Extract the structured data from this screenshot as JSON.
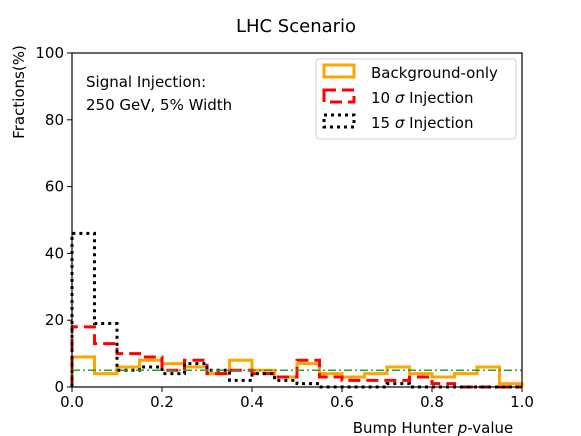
{
  "chart_data": {
    "type": "histogram",
    "title": "LHC Scenario",
    "xlabel_prefix": "Bump Hunter ",
    "xlabel_var": "p",
    "xlabel_suffix": "-value",
    "ylabel": "Fractions(%)",
    "xlim": [
      0.0,
      1.0
    ],
    "ylim": [
      0,
      100
    ],
    "xticks": [
      "0.0",
      "0.2",
      "0.4",
      "0.6",
      "0.8",
      "1.0"
    ],
    "yticks": [
      "0",
      "20",
      "40",
      "60",
      "80",
      "100"
    ],
    "legend_position": "top-right",
    "annotation": [
      "Signal Injection:",
      "250 GeV, 5% Width"
    ],
    "bin_edges": [
      0.0,
      0.05,
      0.1,
      0.15,
      0.2,
      0.25,
      0.3,
      0.35,
      0.4,
      0.45,
      0.5,
      0.55,
      0.6,
      0.65,
      0.7,
      0.75,
      0.8,
      0.85,
      0.9,
      0.95,
      1.0
    ],
    "reference_line": {
      "y": 5,
      "color": "#2ca02c",
      "style": "dash-dot"
    },
    "series": [
      {
        "name": "Background-only",
        "color": "#FFA500",
        "style": "solid",
        "values": [
          9,
          4,
          6,
          8,
          7,
          6,
          4,
          8,
          5,
          3,
          7,
          4,
          3,
          4,
          6,
          4,
          3,
          4,
          6,
          1
        ]
      },
      {
        "name": "10 σ Injection",
        "name_prefix": "10 ",
        "name_symbol": "σ",
        "name_suffix": " Injection",
        "color": "#FF0000",
        "style": "dashed",
        "values": [
          18,
          13,
          10,
          9,
          5,
          8,
          4,
          5,
          4,
          3,
          8,
          3,
          2,
          2,
          2,
          3,
          1,
          0,
          0,
          0
        ]
      },
      {
        "name": "15 σ Injection",
        "name_prefix": "15 ",
        "name_symbol": "σ",
        "name_suffix": " Injection",
        "color": "#000000",
        "style": "dotted",
        "values": [
          46,
          19,
          5,
          6,
          4,
          7,
          5,
          2,
          4,
          2,
          1,
          0,
          0,
          0,
          1,
          0,
          0,
          0,
          0,
          0
        ]
      }
    ]
  }
}
